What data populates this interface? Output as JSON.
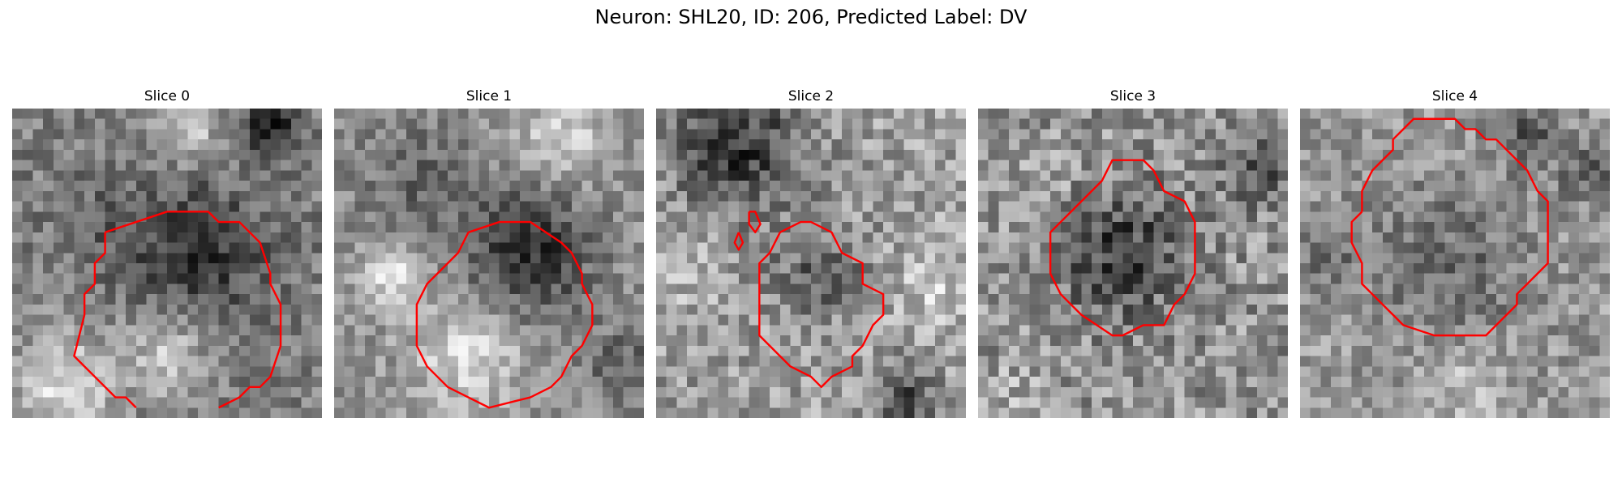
{
  "figure": {
    "title": "Neuron: SHL20, ID: 206, Predicted Label: DV"
  },
  "panels": [
    {
      "title": "Slice 0",
      "image_kind": "grayscale-microscopy-slice",
      "contour_color": "#ff0000"
    },
    {
      "title": "Slice 1",
      "image_kind": "grayscale-microscopy-slice",
      "contour_color": "#ff0000"
    },
    {
      "title": "Slice 2",
      "image_kind": "grayscale-microscopy-slice",
      "contour_color": "#ff0000"
    },
    {
      "title": "Slice 3",
      "image_kind": "grayscale-microscopy-slice",
      "contour_color": "#ff0000"
    },
    {
      "title": "Slice 4",
      "image_kind": "grayscale-microscopy-slice",
      "contour_color": "#ff0000"
    }
  ]
}
